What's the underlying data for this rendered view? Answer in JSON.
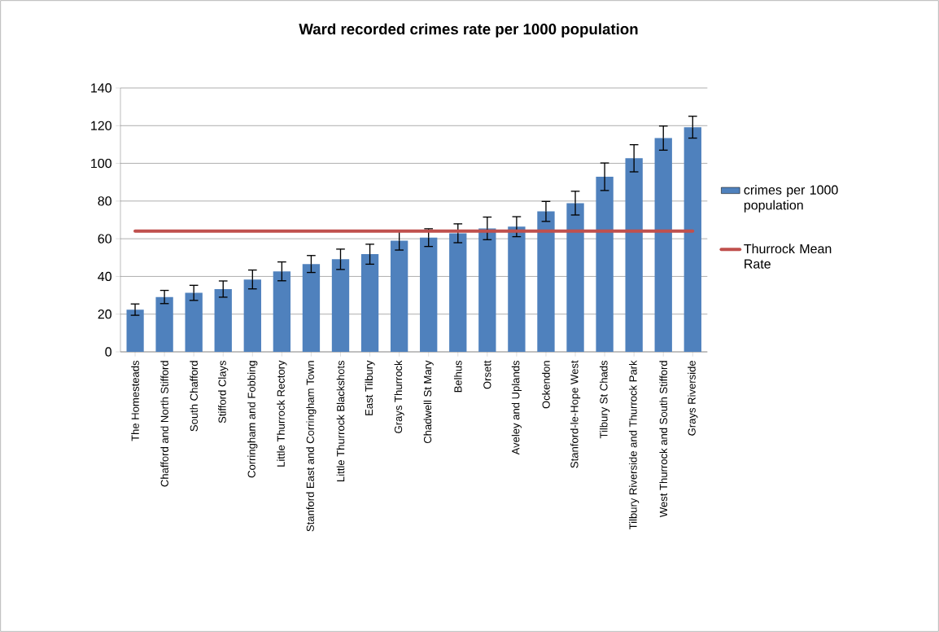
{
  "chart_data": {
    "type": "bar",
    "title": "Ward recorded crimes rate per 1000 population",
    "categories": [
      "The Homesteads",
      "Chafford and North Stifford",
      "South Chafford",
      "Stifford Clays",
      "Corringham and Fobbing",
      "Little Thurrock Rectory",
      "Stanford East and Corringham Town",
      "Little Thurrock Blackshots",
      "East Tilbury",
      "Grays Thurrock",
      "Chadwell St Mary",
      "Belhus",
      "Orsett",
      "Aveley and Uplands",
      "Ockendon",
      "Stanford-le-Hope West",
      "Tilbury St Chads",
      "Tilbury Riverside and Thurrock Park",
      "West Thurrock and South Stifford",
      "Grays Riverside"
    ],
    "series": [
      {
        "name": "crimes per 1000 population",
        "color": "#4f81bd",
        "values": [
          22.4,
          29.1,
          31.3,
          33.3,
          38.4,
          42.7,
          46.6,
          49.1,
          51.8,
          59.0,
          60.6,
          62.9,
          65.5,
          66.4,
          74.5,
          78.9,
          92.9,
          102.7,
          113.4,
          119.2
        ],
        "errors": [
          3,
          3.5,
          4,
          4.3,
          5,
          5,
          4.5,
          5.4,
          5.3,
          5,
          4.7,
          5,
          6,
          5.3,
          5.3,
          6.3,
          7.3,
          7.2,
          6.4,
          5.8
        ]
      },
      {
        "name": "Thurrock Mean Rate",
        "type": "line",
        "color": "#c0504d",
        "values": [
          64.1,
          64.1,
          64.1,
          64.1,
          64.1,
          64.1,
          64.1,
          64.1,
          64.1,
          64.1,
          64.1,
          64.1,
          64.1,
          64.1,
          64.1,
          64.1,
          64.1,
          64.1,
          64.1,
          64.1
        ]
      }
    ],
    "ylim": [
      0,
      140
    ],
    "yticks": [
      0,
      20,
      40,
      60,
      80,
      100,
      120,
      140
    ],
    "grid": "y",
    "legend": "right"
  }
}
